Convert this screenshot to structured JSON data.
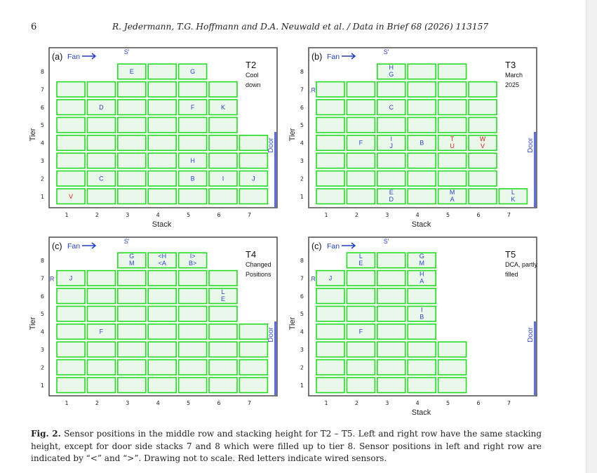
{
  "header": {
    "page_number": "6",
    "running_head": "R. Jedermann, T.G. Hoffmann and D.A. Neuwald et al. / Data in Brief 68 (2026) 113157"
  },
  "figure": {
    "colors": {
      "box_stroke": "#22dd22",
      "box_fill": "#e9f8e9",
      "sensor_blue": "#2a3fd4",
      "sensor_red": "#e02020",
      "door": "#5a6cf0",
      "frame": "#555555"
    },
    "xlabel": "Stack",
    "ylabel": "Tier",
    "fan_label": "Fan",
    "door_label": "Door",
    "s_prime_label": "S'",
    "x_ticks": [
      "1",
      "2",
      "3",
      "4",
      "5",
      "6",
      "7"
    ],
    "y_ticks": [
      "1",
      "2",
      "3",
      "4",
      "5",
      "6",
      "7",
      "8"
    ],
    "panels": [
      {
        "tag": "(a)",
        "title": "T2",
        "desc": [
          "Cool",
          "down"
        ],
        "s_prime_col": 3,
        "r_label": "",
        "show_xlabel": true,
        "stacks": [
          [
            1,
            7
          ],
          [
            2,
            7
          ],
          [
            3,
            8
          ],
          [
            4,
            8
          ],
          [
            5,
            8
          ],
          [
            6,
            7
          ],
          [
            7,
            4
          ]
        ],
        "sensors": [
          {
            "s": 3,
            "t": 8,
            "lines": [
              "E"
            ],
            "c": "b"
          },
          {
            "s": 5,
            "t": 8,
            "lines": [
              "G"
            ],
            "c": "b"
          },
          {
            "s": 2,
            "t": 6,
            "lines": [
              "D"
            ],
            "c": "b"
          },
          {
            "s": 5,
            "t": 6,
            "lines": [
              "F"
            ],
            "c": "b"
          },
          {
            "s": 6,
            "t": 6,
            "lines": [
              "K"
            ],
            "c": "b"
          },
          {
            "s": 5,
            "t": 3,
            "lines": [
              "H"
            ],
            "c": "b"
          },
          {
            "s": 2,
            "t": 2,
            "lines": [
              "C"
            ],
            "c": "b"
          },
          {
            "s": 6,
            "t": 2,
            "lines": [
              "I"
            ],
            "c": "b"
          },
          {
            "s": 7,
            "t": 2,
            "lines": [
              "J"
            ],
            "c": "b"
          },
          {
            "s": 5,
            "t": 2,
            "lines": [
              "B"
            ],
            "c": "b"
          },
          {
            "s": 1,
            "t": 1,
            "lines": [
              "V"
            ],
            "c": "r"
          }
        ]
      },
      {
        "tag": "(b)",
        "title": "T3",
        "desc": [
          "March",
          "2025"
        ],
        "s_prime_col": 3,
        "r_label": ".R",
        "show_xlabel": true,
        "stacks": [
          [
            1,
            7
          ],
          [
            2,
            7
          ],
          [
            3,
            8
          ],
          [
            4,
            8
          ],
          [
            5,
            8
          ],
          [
            6,
            7
          ],
          [
            7,
            1
          ]
        ],
        "sensors": [
          {
            "s": 3,
            "t": 8,
            "lines": [
              "H",
              "G"
            ],
            "c": "b"
          },
          {
            "s": 3,
            "t": 6,
            "lines": [
              "C"
            ],
            "c": "b"
          },
          {
            "s": 2,
            "t": 4,
            "lines": [
              "F"
            ],
            "c": "b"
          },
          {
            "s": 3,
            "t": 4,
            "lines": [
              "I",
              "J"
            ],
            "c": "b"
          },
          {
            "s": 4,
            "t": 4,
            "lines": [
              "B"
            ],
            "c": "b"
          },
          {
            "s": 5,
            "t": 4,
            "lines": [
              "T",
              "U"
            ],
            "c": "r"
          },
          {
            "s": 6,
            "t": 4,
            "lines": [
              "W",
              "V"
            ],
            "c": "r"
          },
          {
            "s": 3,
            "t": 1,
            "lines": [
              "E",
              "D"
            ],
            "c": "b"
          },
          {
            "s": 5,
            "t": 1,
            "lines": [
              "M",
              "A"
            ],
            "c": "b"
          },
          {
            "s": 7,
            "t": 1,
            "lines": [
              "L",
              "K"
            ],
            "c": "b"
          }
        ]
      },
      {
        "tag": "(c)",
        "title": "T4",
        "desc": [
          "Changed",
          "Positions"
        ],
        "s_prime_col": 3,
        "r_label": "R",
        "show_xlabel": false,
        "stacks": [
          [
            1,
            7
          ],
          [
            2,
            7
          ],
          [
            3,
            8
          ],
          [
            4,
            8
          ],
          [
            5,
            8
          ],
          [
            6,
            7
          ],
          [
            7,
            4
          ]
        ],
        "sensors": [
          {
            "s": 1,
            "t": 7,
            "lines": [
              "J"
            ],
            "c": "b"
          },
          {
            "s": 3,
            "t": 8,
            "lines": [
              "G",
              "M"
            ],
            "c": "b"
          },
          {
            "s": 4,
            "t": 8,
            "lines": [
              "<H",
              "<A"
            ],
            "c": "b"
          },
          {
            "s": 5,
            "t": 8,
            "lines": [
              "I>",
              "B>"
            ],
            "c": "b"
          },
          {
            "s": 6,
            "t": 6,
            "lines": [
              "L",
              "E"
            ],
            "c": "b"
          },
          {
            "s": 2,
            "t": 4,
            "lines": [
              "F"
            ],
            "c": "b"
          }
        ]
      },
      {
        "tag": "(c)",
        "title": "T5",
        "desc": [
          "DCA, partly",
          "filled"
        ],
        "s_prime_col": 3,
        "r_label": ".R",
        "show_xlabel": true,
        "stacks": [
          [
            1,
            7
          ],
          [
            2,
            8
          ],
          [
            3,
            8
          ],
          [
            4,
            8
          ],
          [
            5,
            3
          ]
        ],
        "sensors": [
          {
            "s": 1,
            "t": 7,
            "lines": [
              "J"
            ],
            "c": "b"
          },
          {
            "s": 2,
            "t": 8,
            "lines": [
              "L",
              "E"
            ],
            "c": "b"
          },
          {
            "s": 4,
            "t": 8,
            "lines": [
              "G",
              "M"
            ],
            "c": "b"
          },
          {
            "s": 4,
            "t": 7,
            "lines": [
              "H",
              "A"
            ],
            "c": "b"
          },
          {
            "s": 4,
            "t": 5,
            "lines": [
              "I",
              "B"
            ],
            "c": "b"
          },
          {
            "s": 2,
            "t": 4,
            "lines": [
              "F"
            ],
            "c": "b"
          }
        ]
      }
    ]
  },
  "caption": {
    "label": "Fig. 2.",
    "text": " Sensor positions in the middle row and stacking height for T2 – T5. Left and right row have the same stacking height, except for door side stacks 7 and 8 which were filled up to tier 8. Sensor positions in left and right row are indicated by “<” and “>”. Drawing not to scale. Red letters indicate wired sensors."
  }
}
